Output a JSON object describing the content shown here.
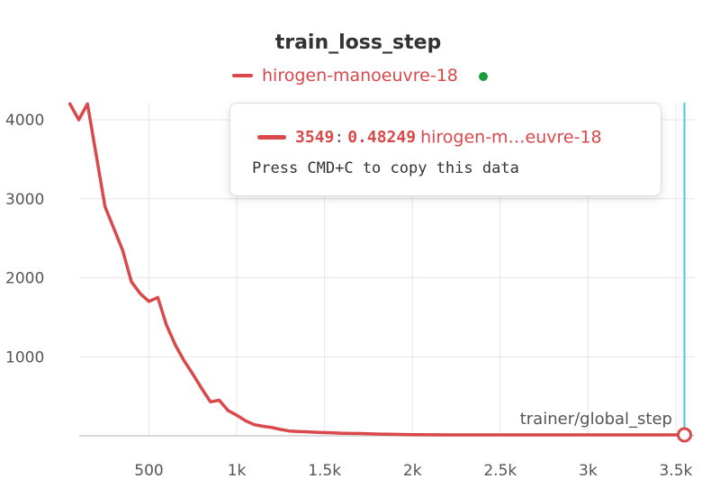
{
  "colors": {
    "series": "#d9484b",
    "hover_line": "#4cc6e0",
    "status_dot": "#1a9c3c",
    "grid": "#e6e6e6"
  },
  "chart_data": {
    "type": "line",
    "title": "train_loss_step",
    "xlabel": "trainer/global_step",
    "ylabel": "",
    "xlim": [
      50,
      3550
    ],
    "ylim": [
      0,
      4300
    ],
    "grid": true,
    "legend_position": "top",
    "x_ticks": [
      500,
      1000,
      1500,
      2000,
      2500,
      3000,
      3500
    ],
    "x_tick_labels": [
      "500",
      "1k",
      "1.5k",
      "2k",
      "2.5k",
      "3k",
      "3.5k"
    ],
    "y_ticks": [
      1000,
      2000,
      3000,
      4000
    ],
    "y_tick_labels": [
      "1000",
      "2000",
      "3000",
      "4000"
    ],
    "series": [
      {
        "name": "hirogen-manoeuvre-18",
        "color": "#d9484b",
        "x": [
          50,
          100,
          150,
          250,
          350,
          400,
          450,
          500,
          550,
          600,
          650,
          700,
          750,
          800,
          850,
          900,
          950,
          1000,
          1050,
          1100,
          1150,
          1200,
          1250,
          1300,
          1350,
          1400,
          1450,
          1500,
          1550,
          1600,
          1650,
          1700,
          1750,
          1800,
          1850,
          1900,
          2000,
          2100,
          2200,
          2300,
          2400,
          2500,
          2600,
          2700,
          2800,
          2900,
          3000,
          3100,
          3200,
          3300,
          3400,
          3500,
          3549
        ],
        "y": [
          4200,
          4000,
          4200,
          2900,
          2350,
          1950,
          1800,
          1700,
          1750,
          1400,
          1150,
          950,
          780,
          600,
          430,
          450,
          320,
          260,
          190,
          140,
          120,
          105,
          80,
          60,
          55,
          50,
          45,
          40,
          38,
          32,
          30,
          28,
          25,
          22,
          20,
          18,
          15,
          12,
          10,
          8,
          7,
          6,
          5,
          4,
          3,
          3,
          2,
          2,
          2,
          1,
          1,
          1,
          0.48249
        ]
      }
    ],
    "hover": {
      "step": "3549",
      "value": "0.48249",
      "series_name": "hirogen-m…euvre-18",
      "hint": "Press CMD+C to copy this data"
    }
  }
}
